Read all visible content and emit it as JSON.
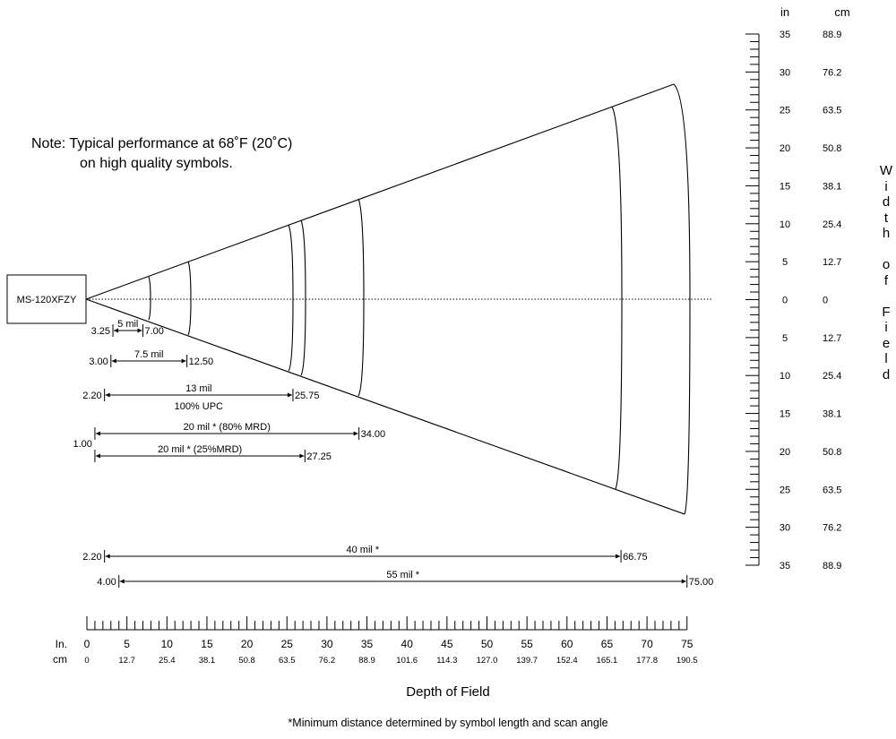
{
  "scanner_label": "MS-120XFZY",
  "note": {
    "line1": "Note:  Typical performance at 68˚F (20˚C)",
    "line2": "on high quality symbols."
  },
  "axes": {
    "depth_title": "Depth of Field",
    "depth_unit_in": "In.",
    "depth_unit_cm": "cm",
    "depth_ticks_in": [
      "0",
      "5",
      "10",
      "15",
      "20",
      "25",
      "30",
      "35",
      "40",
      "45",
      "50",
      "55",
      "60",
      "65",
      "70",
      "75"
    ],
    "depth_ticks_cm": [
      "0",
      "12.7",
      "25.4",
      "38.1",
      "50.8",
      "63.5",
      "76.2",
      "88.9",
      "101.6",
      "114.3",
      "127.0",
      "139.7",
      "152.4",
      "165.1",
      "177.8",
      "190.5"
    ],
    "width_title_letters": [
      "W",
      "i",
      "d",
      "t",
      "h",
      "",
      "o",
      "f",
      "",
      "F",
      "i",
      "e",
      "l",
      "d"
    ],
    "width_unit_in": "in",
    "width_unit_cm": "cm",
    "width_ticks_in": [
      "35",
      "30",
      "25",
      "20",
      "15",
      "10",
      "5",
      "0",
      "5",
      "10",
      "15",
      "20",
      "25",
      "30",
      "35"
    ],
    "width_ticks_cm": [
      "88.9",
      "76.2",
      "63.5",
      "50.8",
      "38.1",
      "25.4",
      "12.7",
      "0",
      "12.7",
      "25.4",
      "38.1",
      "50.8",
      "63.5",
      "76.2",
      "88.9"
    ]
  },
  "ranges": [
    {
      "name": "5-mil",
      "label": "5 mil",
      "sublabel": "",
      "start": 3.25,
      "end": 7.0,
      "start_label": "3.25",
      "end_label": "7.00"
    },
    {
      "name": "7-5-mil",
      "label": "7.5 mil",
      "sublabel": "",
      "start": 3.0,
      "end": 12.5,
      "start_label": "3.00",
      "end_label": "12.50"
    },
    {
      "name": "13-mil",
      "label": "13  mil",
      "sublabel": "100% UPC",
      "start": 2.2,
      "end": 25.75,
      "start_label": "2.20",
      "end_label": "25.75"
    },
    {
      "name": "20-mil-80",
      "label": "20 mil * (80% MRD)",
      "sublabel": "",
      "start": 1.0,
      "end": 34.0,
      "start_label": "1.00",
      "end_label": "34.00"
    },
    {
      "name": "20-mil-25",
      "label": "20 mil * (25%MRD)",
      "sublabel": "",
      "start": 1.0,
      "end": 27.25,
      "start_label": "",
      "end_label": "27.25"
    },
    {
      "name": "40-mil",
      "label": "40 mil *",
      "sublabel": "",
      "start": 2.2,
      "end": 66.75,
      "start_label": "2.20",
      "end_label": "66.75"
    },
    {
      "name": "55-mil",
      "label": "55 mil *",
      "sublabel": "",
      "start": 4.0,
      "end": 75.0,
      "start_label": "4.00",
      "end_label": "75.00"
    }
  ],
  "footnote": "*Minimum distance determined by symbol length and scan angle"
}
